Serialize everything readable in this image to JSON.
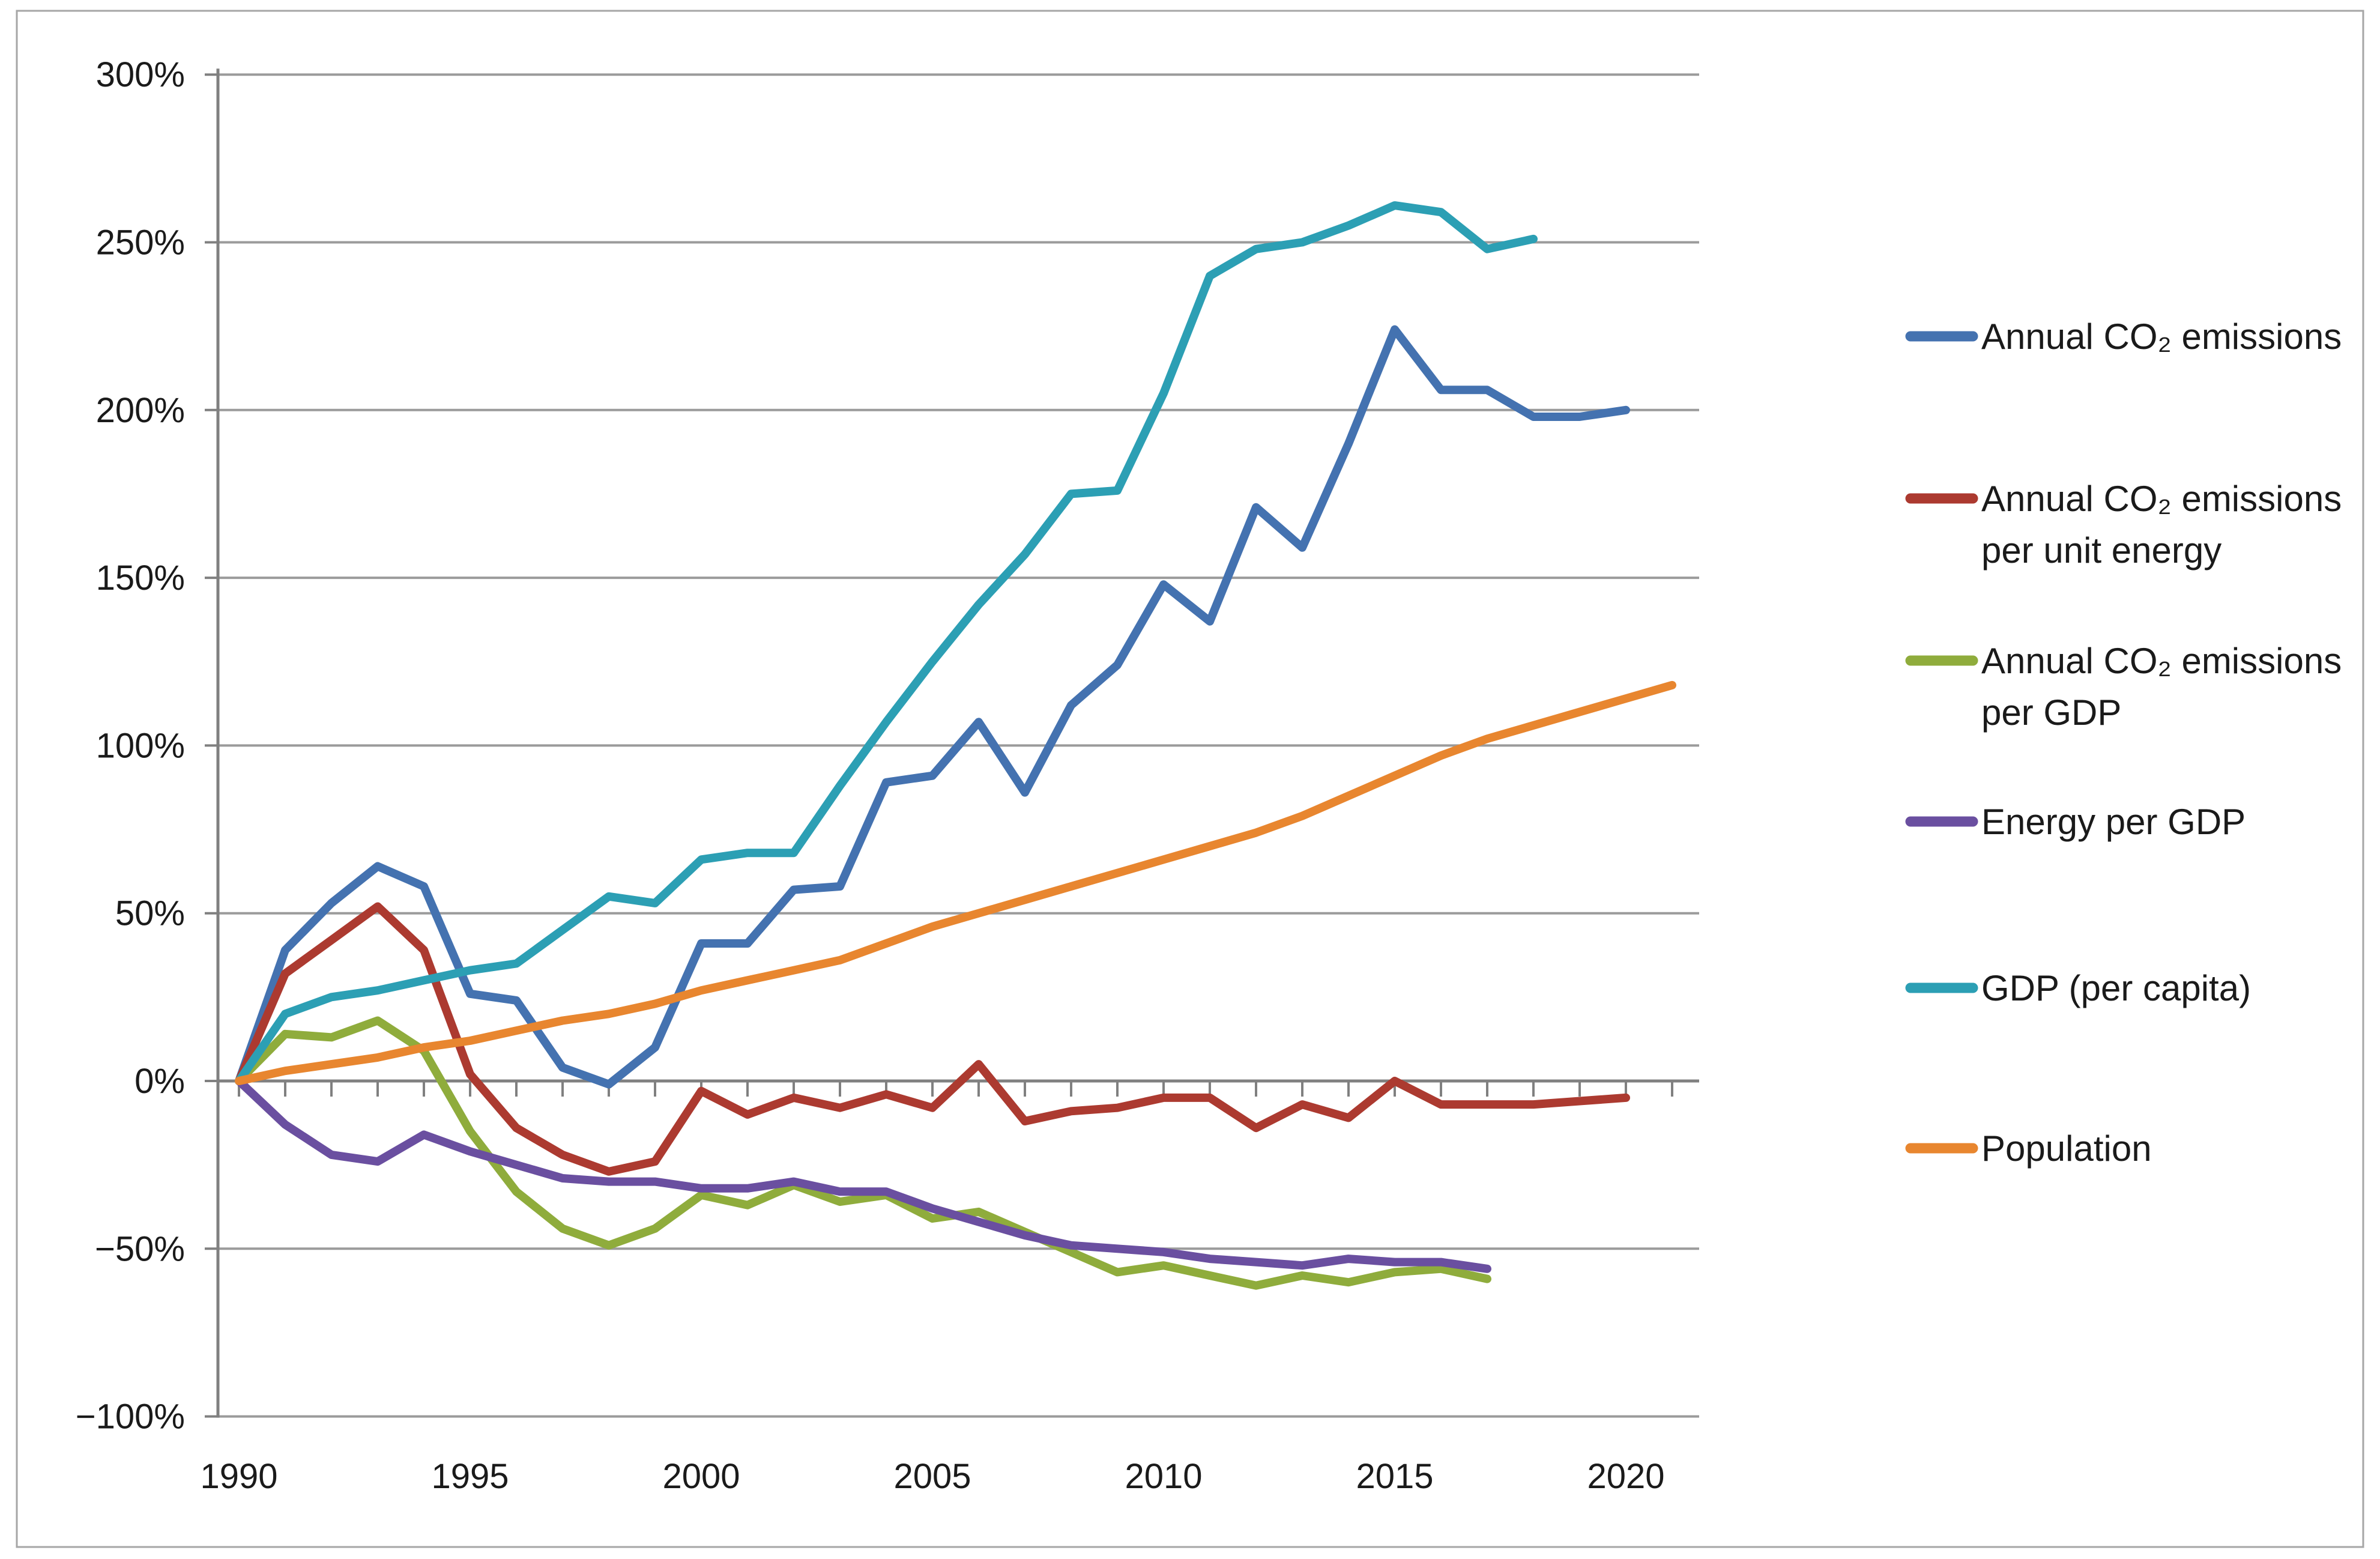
{
  "figure": {
    "background_color": "#ffffff",
    "border_color": "#a6a6a6",
    "grid_color": "#9b9b9b",
    "axis_color": "#808080",
    "label_color": "#1a1a1a"
  },
  "chart_data": {
    "type": "line",
    "title": "",
    "xlabel": "",
    "ylabel": "",
    "x_tick_labels": [
      "1990",
      "1995",
      "2000",
      "2005",
      "2010",
      "2015",
      "2020"
    ],
    "x_tick_years": [
      1990,
      1995,
      2000,
      2005,
      2010,
      2015,
      2020
    ],
    "y_tick_labels": [
      "300%",
      "250%",
      "200%",
      "150%",
      "100%",
      "50%",
      "0%",
      "−50%",
      "−100%"
    ],
    "y_tick_values": [
      300,
      250,
      200,
      150,
      100,
      50,
      0,
      -50,
      -100
    ],
    "ylim": [
      -100,
      300
    ],
    "xlim": [
      1990,
      2021
    ],
    "grid": "horizontal",
    "legend_position": "right",
    "units": "percent change since 1990",
    "series": [
      {
        "name": "Annual CO₂ emissions",
        "legend_lines": [
          "Annual CO₂ emissions"
        ],
        "color": "#4472B0",
        "start_year": 1990,
        "values": [
          0,
          39,
          53,
          64,
          58,
          26,
          24,
          4,
          -1,
          10,
          41,
          41,
          57,
          58,
          89,
          91,
          107,
          86,
          112,
          124,
          148,
          137,
          171,
          159,
          190,
          224,
          206,
          206,
          198,
          198,
          200
        ]
      },
      {
        "name": "Annual CO₂ emissions per unit energy",
        "legend_lines": [
          "Annual CO₂ emissions",
          "per unit energy"
        ],
        "color": "#AC3A30",
        "start_year": 1990,
        "values": [
          0,
          32,
          42,
          52,
          39,
          2,
          -14,
          -22,
          -27,
          -24,
          -3,
          -10,
          -5,
          -8,
          -4,
          -8,
          5,
          -12,
          -9,
          -8,
          -5,
          -5,
          -14,
          -7,
          -11,
          0,
          -7,
          -7,
          -7,
          -6,
          -5
        ]
      },
      {
        "name": "Annual CO₂ emissions per GDP",
        "legend_lines": [
          "Annual CO₂ emissions",
          "per GDP"
        ],
        "color": "#8FAC3C",
        "start_year": 1990,
        "values": [
          0,
          14,
          13,
          18,
          9,
          -15,
          -33,
          -44,
          -49,
          -44,
          -34,
          -37,
          -31,
          -36,
          -34,
          -41,
          -39,
          -45,
          -51,
          -57,
          -55,
          -58,
          -61,
          -58,
          -60,
          -57,
          -56,
          -59
        ]
      },
      {
        "name": "Energy per GDP",
        "legend_lines": [
          "Energy per GDP"
        ],
        "color": "#6A4FA0",
        "start_year": 1990,
        "values": [
          0,
          -13,
          -22,
          -24,
          -16,
          -21,
          -25,
          -29,
          -30,
          -30,
          -32,
          -32,
          -30,
          -33,
          -33,
          -38,
          -42,
          -46,
          -49,
          -50,
          -51,
          -53,
          -54,
          -55,
          -53,
          -54,
          -54,
          -56
        ]
      },
      {
        "name": "GDP (per capita)",
        "legend_lines": [
          "GDP (per capita)"
        ],
        "color": "#2C9FB4",
        "start_year": 1990,
        "values": [
          0,
          20,
          25,
          27,
          30,
          33,
          35,
          45,
          55,
          53,
          66,
          68,
          68,
          88,
          107,
          125,
          142,
          157,
          175,
          176,
          205,
          240,
          248,
          250,
          255,
          261,
          259,
          248,
          251
        ]
      },
      {
        "name": "Population",
        "legend_lines": [
          "Population"
        ],
        "color": "#E8862F",
        "start_year": 1990,
        "values": [
          0,
          3,
          5,
          7,
          10,
          12,
          15,
          18,
          20,
          23,
          27,
          30,
          33,
          36,
          41,
          46,
          50,
          54,
          58,
          62,
          66,
          70,
          74,
          79,
          85,
          91,
          97,
          102,
          106,
          110,
          114,
          118
        ]
      }
    ]
  }
}
